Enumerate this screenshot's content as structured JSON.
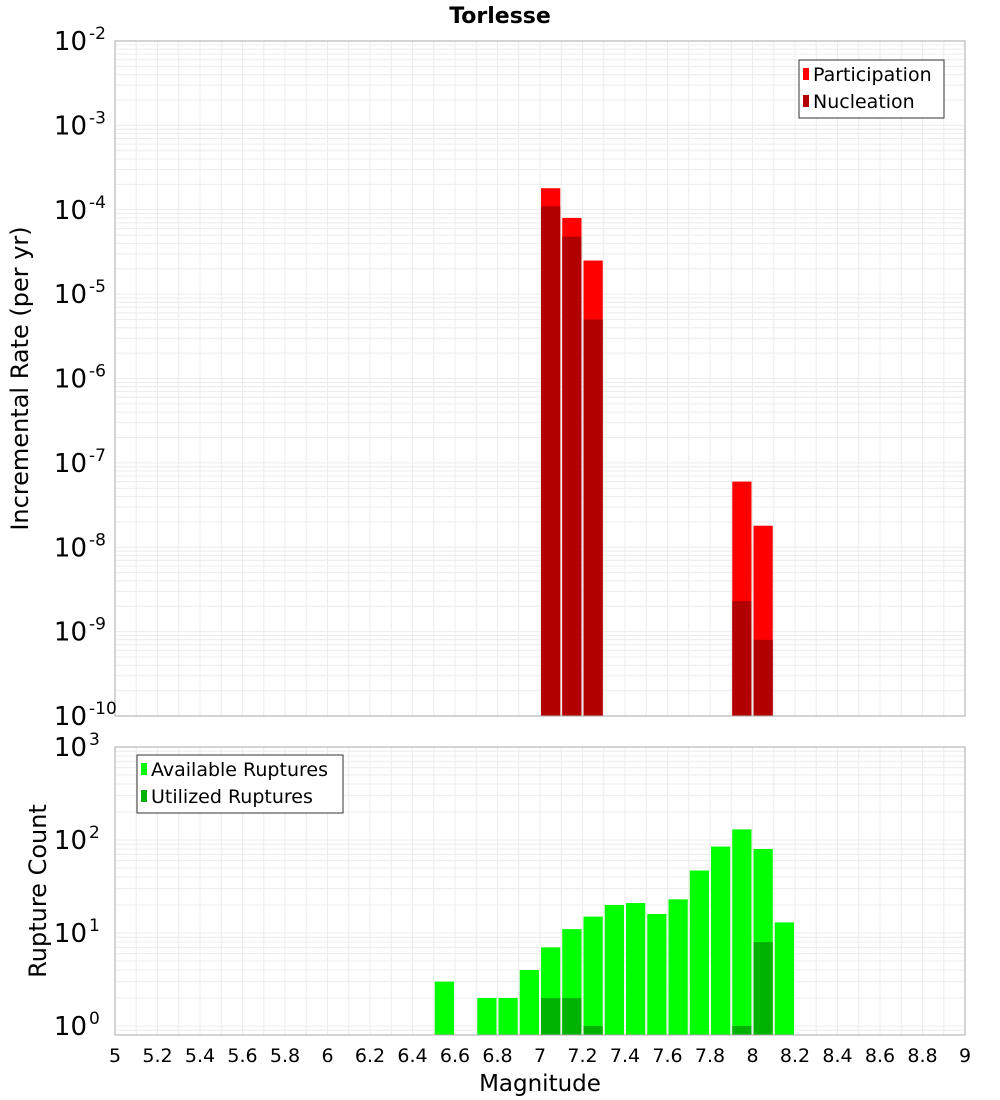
{
  "title": "Torlesse",
  "colors": {
    "participation": "#ff0000",
    "nucleation": "#b20000",
    "available": "#00ff00",
    "utilized": "#00b200",
    "grid": "#ececec",
    "frame": "#aaaaaa"
  },
  "chart_data": [
    {
      "type": "bar",
      "panel": "top",
      "title": "Torlesse",
      "ylabel": "Incremental Rate (per yr)",
      "yscale": "log",
      "ylim": [
        1e-10,
        0.01
      ],
      "xlim": [
        5,
        9
      ],
      "grid": true,
      "legend_position": "top-right",
      "bar_width": 0.1,
      "y_ticks": [
        {
          "base": "10",
          "exp": "-10",
          "value": 1e-10
        },
        {
          "base": "10",
          "exp": "-9",
          "value": 1e-09
        },
        {
          "base": "10",
          "exp": "-8",
          "value": 1e-08
        },
        {
          "base": "10",
          "exp": "-7",
          "value": 1e-07
        },
        {
          "base": "10",
          "exp": "-6",
          "value": 1e-06
        },
        {
          "base": "10",
          "exp": "-5",
          "value": 1e-05
        },
        {
          "base": "10",
          "exp": "-4",
          "value": 0.0001
        },
        {
          "base": "10",
          "exp": "-3",
          "value": 0.001
        },
        {
          "base": "10",
          "exp": "-2",
          "value": 0.01
        }
      ],
      "series": [
        {
          "name": "Participation",
          "color": "#ff0000",
          "x": [
            7.05,
            7.15,
            7.25,
            7.95,
            8.05
          ],
          "values": [
            0.00018,
            8e-05,
            2.5e-05,
            6e-08,
            1.8e-08
          ]
        },
        {
          "name": "Nucleation",
          "color": "#b20000",
          "x": [
            7.05,
            7.15,
            7.25,
            7.95,
            8.05
          ],
          "values": [
            0.00011,
            4.8e-05,
            5e-06,
            2.3e-09,
            8e-10
          ]
        }
      ]
    },
    {
      "type": "bar",
      "panel": "bottom",
      "xlabel": "Magnitude",
      "ylabel": "Rupture Count",
      "yscale": "log",
      "ylim": [
        0.8,
        1000
      ],
      "xlim": [
        5,
        9
      ],
      "grid": true,
      "legend_position": "top-left",
      "bar_width": 0.1,
      "y_ticks": [
        {
          "base": "10",
          "exp": "0",
          "value": 1
        },
        {
          "base": "10",
          "exp": "1",
          "value": 10
        },
        {
          "base": "10",
          "exp": "2",
          "value": 100
        },
        {
          "base": "10",
          "exp": "3",
          "value": 1000
        }
      ],
      "x_ticks": [
        "5",
        "5.2",
        "5.4",
        "5.6",
        "5.8",
        "6",
        "6.2",
        "6.4",
        "6.6",
        "6.8",
        "7",
        "7.2",
        "7.4",
        "7.6",
        "7.8",
        "8",
        "8.2",
        "8.4",
        "8.6",
        "8.8",
        "9"
      ],
      "series": [
        {
          "name": "Available Ruptures",
          "color": "#00ff00",
          "x": [
            6.55,
            6.75,
            6.85,
            6.95,
            7.05,
            7.15,
            7.25,
            7.35,
            7.45,
            7.55,
            7.65,
            7.75,
            7.85,
            7.95,
            8.05,
            8.15
          ],
          "values": [
            3,
            2,
            2,
            4,
            7,
            11,
            15,
            20,
            21,
            16,
            23,
            47,
            85,
            130,
            80,
            13
          ]
        },
        {
          "name": "Utilized Ruptures",
          "color": "#00b200",
          "x": [
            7.05,
            7.15,
            7.25,
            7.95,
            8.05
          ],
          "values": [
            2,
            2,
            1,
            1,
            8
          ]
        }
      ]
    }
  ]
}
